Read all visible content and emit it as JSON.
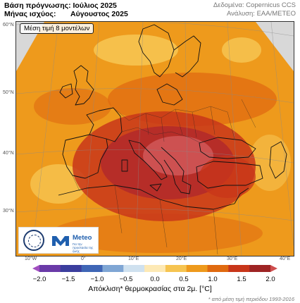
{
  "header": {
    "forecast_base_label": "Βάση πρόγνωσης: Ιούλιος 2025",
    "valid_month_label": "Μήνας ισχύος:",
    "valid_month_value": "Αύγουστος 2025",
    "data_source": "Δεδομένα: Copernicus CCS",
    "analysis": "Ανάλυση: ΕΑΑ/METEO"
  },
  "map": {
    "average_label": "Μέση τιμή 8 μοντέλων",
    "lat_labels": [
      "60°N",
      "50°N",
      "40°N",
      "30°N"
    ],
    "lon_labels": [
      "10°W",
      "0°",
      "10°E",
      "20°E",
      "30°E",
      "40°E"
    ]
  },
  "logo": {
    "brand": "Meteo",
    "tagline_1": "Για την",
    "tagline_2": "προστασία",
    "tagline_3": "της ζωής"
  },
  "colorbar": {
    "ticks": [
      "−2.0",
      "−1.5",
      "−1.0",
      "−0.5",
      "0.0",
      "0.5",
      "1.0",
      "1.5",
      "2.0"
    ],
    "colors": [
      "#a14fc0",
      "#6a3aa8",
      "#3b3e9e",
      "#3f66b6",
      "#7fa6d4",
      "#cfe1ef",
      "#fde9b5",
      "#f6c451",
      "#ee9a1c",
      "#e06a10",
      "#c8361a",
      "#9e2424",
      "#ce4e4e"
    ],
    "title": "Απόκλιση* θερμοκρασίας στα 2μ. [°C]",
    "footnote": "* από μέση τιμή περιόδου 1993-2016"
  }
}
